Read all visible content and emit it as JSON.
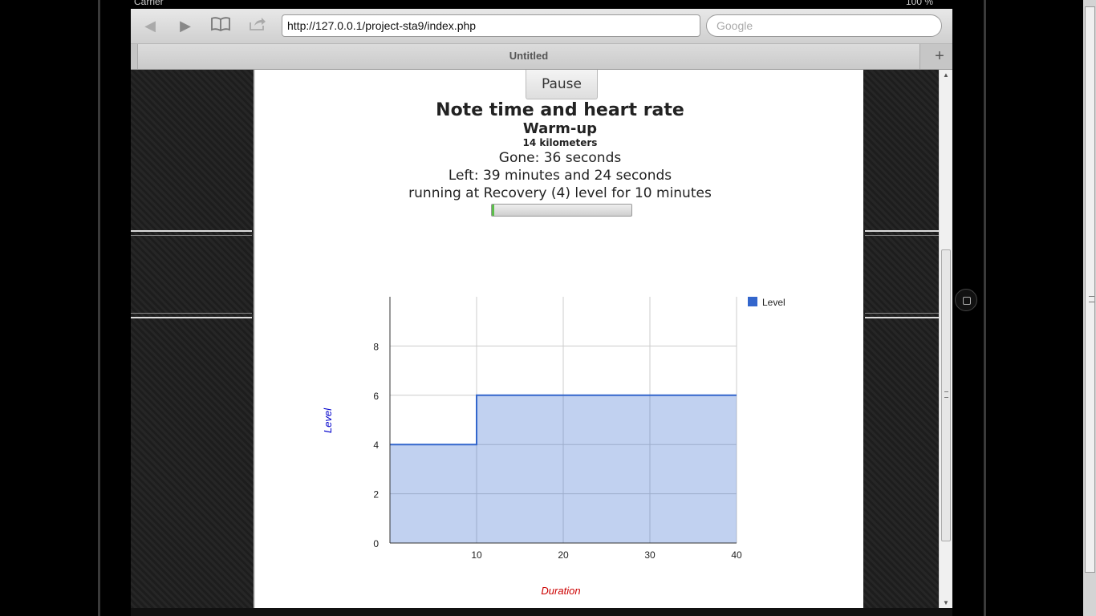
{
  "status_bar": {
    "carrier": "Carrier",
    "battery": "100 %"
  },
  "browser": {
    "url": "http://127.0.0.1/project-sta9/index.php",
    "search_placeholder": "Google",
    "tab_title": "Untitled",
    "new_tab_label": "+"
  },
  "icons": {
    "back": "back-arrow-icon",
    "forward": "forward-arrow-icon",
    "bookmarks": "open-book-icon",
    "share": "share-icon",
    "new_tab": "plus-icon",
    "home": "home-button-icon"
  },
  "workout": {
    "pause_label": "Pause",
    "task_title": "Note time and heart rate",
    "phase_title": "Warm-up",
    "distance": "14 kilometers",
    "gone": "Gone: 36 seconds",
    "left": "Left: 39 minutes and 24 seconds",
    "running": "running at Recovery (4) level for 10 minutes",
    "progress": 0.015
  },
  "chart_data": {
    "type": "area",
    "step": true,
    "x": [
      0,
      10,
      40
    ],
    "series": [
      {
        "name": "Level",
        "values": [
          4,
          6,
          6
        ],
        "color": "#3366cc"
      }
    ],
    "xlabel": "Duration",
    "ylabel": "Level",
    "xlim": [
      0,
      40
    ],
    "ylim": [
      0,
      10
    ],
    "xticks": [
      10,
      20,
      30,
      40
    ],
    "yticks": [
      0,
      2,
      4,
      6,
      8
    ],
    "grid": true,
    "legend": "top-right",
    "axis_title_color": "#cc0000",
    "ylabel_color": "#0000cc"
  }
}
